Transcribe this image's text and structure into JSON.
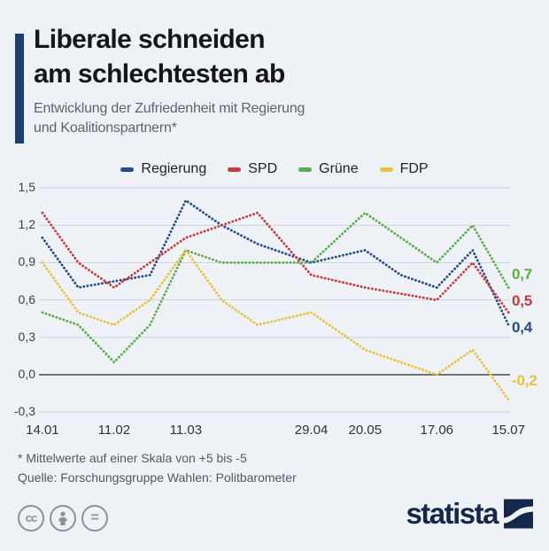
{
  "header": {
    "title_line1": "Liberale schneiden",
    "title_line2": "am schlechtesten ab",
    "subtitle_line1": "Entwicklung der Zufriedenheit mit Regierung",
    "subtitle_line2": "und Koalitionspartnern*",
    "accent_color": "#1d3d73"
  },
  "chart_data": {
    "type": "line",
    "title": "Liberale schneiden am schlechtesten ab",
    "subtitle": "Entwicklung der Zufriedenheit mit Regierung und Koalitionspartnern*",
    "style": "dotted-lines",
    "legend_position": "top",
    "ylim": [
      -0.3,
      1.5
    ],
    "grid_color": "#cfd4da",
    "zero_line_color": "#45494e",
    "x_days": [
      0,
      14,
      28,
      42,
      56,
      70,
      84,
      105,
      126,
      140,
      154,
      168,
      182
    ],
    "x_point_dates": [
      "14.01",
      "28.01",
      "11.02",
      "25.02",
      "11.03",
      "25.03",
      "08.04",
      "29.04",
      "20.05",
      "03.06",
      "17.06",
      "01.07",
      "15.07"
    ],
    "xticks": [
      {
        "label": "14.01",
        "day": 0
      },
      {
        "label": "11.02",
        "day": 28
      },
      {
        "label": "11.03",
        "day": 56
      },
      {
        "label": "29.04",
        "day": 105
      },
      {
        "label": "20.05",
        "day": 126
      },
      {
        "label": "17.06",
        "day": 154
      },
      {
        "label": "15.07",
        "day": 182
      }
    ],
    "yticks": [
      {
        "label": "1,5",
        "value": 1.5
      },
      {
        "label": "1,2",
        "value": 1.2
      },
      {
        "label": "0,9",
        "value": 0.9
      },
      {
        "label": "0,6",
        "value": 0.6
      },
      {
        "label": "0,3",
        "value": 0.3
      },
      {
        "label": "0,0",
        "value": 0.0
      },
      {
        "label": "-0,3",
        "value": -0.3
      }
    ],
    "series": [
      {
        "name": "Regierung",
        "color": "#274a88",
        "values": [
          1.1,
          0.7,
          0.75,
          0.8,
          1.4,
          1.2,
          1.05,
          0.9,
          1.0,
          0.8,
          0.7,
          1.0,
          0.4
        ],
        "end_label": "0,4"
      },
      {
        "name": "SPD",
        "color": "#c93a3d",
        "values": [
          1.3,
          0.9,
          0.7,
          0.9,
          1.1,
          1.2,
          1.3,
          0.8,
          0.7,
          0.65,
          0.6,
          0.9,
          0.5
        ],
        "end_label": "0,5"
      },
      {
        "name": "Grüne",
        "color": "#5aad47",
        "values": [
          0.5,
          0.4,
          0.1,
          0.4,
          1.0,
          0.9,
          0.9,
          0.9,
          1.3,
          1.1,
          0.9,
          1.2,
          0.7
        ],
        "end_label": "0,7"
      },
      {
        "name": "FDP",
        "color": "#e7c13c",
        "values": [
          0.9,
          0.5,
          0.4,
          0.6,
          1.0,
          0.6,
          0.4,
          0.5,
          0.2,
          0.1,
          0.0,
          0.2,
          -0.2
        ],
        "end_label": "-0,2"
      }
    ]
  },
  "footer": {
    "footnote": "* Mittelwerte auf einer Skala von +5 bis -5",
    "source": "Quelle: Forschungsgruppe Wahlen: Politbarometer"
  },
  "branding": {
    "logo_text": "statista",
    "logo_color": "#15284b",
    "license_icons": [
      "cc-icon",
      "attribution-icon",
      "equals-icon"
    ],
    "cc_label": "cc",
    "equals_label": "="
  }
}
